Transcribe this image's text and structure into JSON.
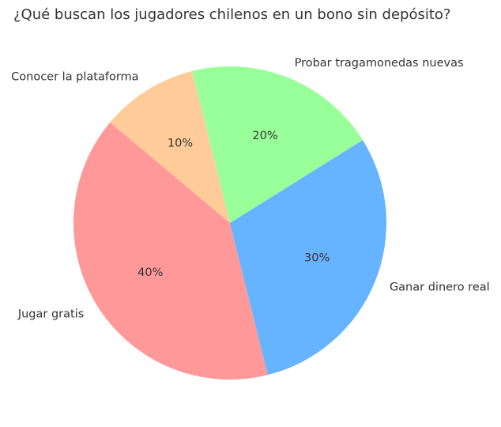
{
  "chart_data": {
    "type": "pie",
    "title": "¿Qué buscan los jugadores chilenos en un bono sin depósito?",
    "categories": [
      "Jugar gratis",
      "Ganar dinero real",
      "Probar tragamonedas nuevas",
      "Conocer la plataforma"
    ],
    "values": [
      40,
      30,
      20,
      10
    ],
    "percent_labels": [
      "40%",
      "30%",
      "20%",
      "10%"
    ],
    "colors": [
      "#ff9999",
      "#66b3ff",
      "#99ff99",
      "#ffcc99"
    ],
    "start_angle_degrees": 140,
    "direction": "counterclockwise",
    "legend": "none"
  }
}
